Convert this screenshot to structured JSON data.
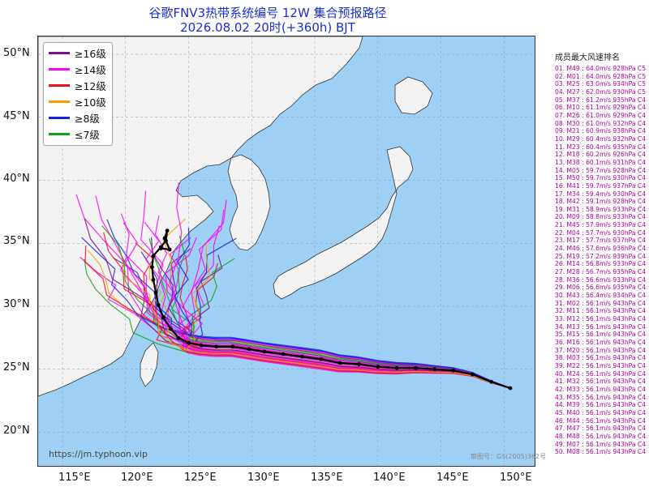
{
  "header": {
    "title_line1": "谷歌FNV3热带系统编号 12W 集合预报路径",
    "title_line2": "2026.08.02 20时(+360h) BJT"
  },
  "colors": {
    "ocean": "#9fd0f5",
    "land": "#f3f3f3",
    "coast": "#333333",
    "track_black": "#000000",
    "level_16": "#7a0f8f",
    "level_14": "#ff00ff",
    "level_12": "#ee1111",
    "level_10": "#f5a000",
    "level_8": "#1a22e0",
    "level_7": "#18a018",
    "ranking_text": "#b0009b"
  },
  "axes": {
    "lat_labels": [
      "50°N",
      "45°N",
      "40°N",
      "35°N",
      "30°N",
      "25°N",
      "20°N"
    ],
    "lon_labels": [
      "115°E",
      "120°E",
      "125°E",
      "130°E",
      "135°E",
      "140°E",
      "145°E",
      "150°E"
    ]
  },
  "legend": {
    "items": [
      {
        "label": "≥16级",
        "color": "#7a0f8f"
      },
      {
        "label": "≥14级",
        "color": "#ff00ff"
      },
      {
        "label": "≥12级",
        "color": "#ee1111"
      },
      {
        "label": "≥10级",
        "color": "#f5a000"
      },
      {
        "label": "≥8级",
        "color": "#1a22e0"
      },
      {
        "label": "≤7级",
        "color": "#18a018"
      }
    ]
  },
  "main_track": {
    "points_lonlat": [
      [
        150.5,
        23.5
      ],
      [
        149.0,
        24.0
      ],
      [
        147.5,
        24.6
      ],
      [
        146.0,
        24.9
      ],
      [
        144.5,
        25.0
      ],
      [
        143.0,
        25.1
      ],
      [
        141.5,
        25.1
      ],
      [
        140.0,
        25.2
      ],
      [
        138.5,
        25.4
      ],
      [
        137.0,
        25.5
      ],
      [
        135.5,
        25.8
      ],
      [
        134.0,
        26.0
      ],
      [
        132.5,
        26.2
      ],
      [
        131.0,
        26.4
      ],
      [
        129.8,
        26.6
      ],
      [
        128.5,
        26.8
      ],
      [
        127.2,
        26.8
      ],
      [
        126.0,
        26.9
      ],
      [
        125.0,
        27.1
      ],
      [
        124.2,
        27.5
      ],
      [
        123.6,
        28.2
      ],
      [
        123.0,
        29.1
      ],
      [
        122.6,
        30.1
      ],
      [
        122.4,
        31.1
      ],
      [
        122.2,
        32.1
      ],
      [
        122.1,
        33.1
      ],
      [
        122.2,
        34.0
      ],
      [
        122.8,
        34.7
      ],
      [
        123.2,
        35.2
      ],
      [
        123.3,
        36.0
      ],
      [
        123.1,
        35.4
      ],
      [
        123.5,
        34.5
      ],
      [
        122.8,
        34.6
      ]
    ]
  },
  "map_text": {
    "watermark": "https://jm.typhoon.vip",
    "approval": "审图号：GS(2005)362号"
  },
  "ranking": {
    "title": "成员最大风速排名",
    "items": [
      "01. M49 : 64.0m/s 928hPa C5",
      "02. M01 : 64.0m/s 928hPa C5",
      "03. M25 : 63.0m/s 934hPa C5",
      "04. M27 : 62.0m/s 930hPa C5",
      "05. M37 : 61.2m/s 935hPa C4",
      "06. M10 : 61.1m/s 929hPa C4",
      "07. M26 : 61.0m/s 929hPa C4",
      "08. M30 : 61.0m/s 932hPa C4",
      "09. M21 : 60.9m/s 938hPa C4",
      "10. M29 : 60.4m/s 932hPa C4",
      "11. M23 : 60.4m/s 935hPa C4",
      "12. M18 : 60.2m/s 926hPa C4",
      "13. M38 : 60.1m/s 931hPa C4",
      "14. M05 : 59.7m/s 928hPa C4",
      "15. M50 : 59.7m/s 930hPa C4",
      "16. M41 : 59.7m/s 937hPa C4",
      "17. M34 : 59.4m/s 930hPa C4",
      "18. M42 : 59.1m/s 928hPa C4",
      "19. M31 : 58.9m/s 933hPa C4",
      "20. M09 : 58.8m/s 933hPa C4",
      "21. M45 : 57.9m/s 933hPa C4",
      "22. M04 : 57.7m/s 930hPa C4",
      "23. M17 : 57.7m/s 937hPa C4",
      "24. M46 : 57.6m/s 936hPa C4",
      "25. M19 : 57.2m/s 939hPa C4",
      "26. M14 : 56.8m/s 933hPa C4",
      "27. M28 : 56.7m/s 935hPa C4",
      "28. M36 : 56.6m/s 933hPa C4",
      "29. M06 : 56.6m/s 935hPa C4",
      "30. M43 : 56.4m/s 934hPa C4",
      "31. M02 : 56.1m/s 943hPa C4",
      "32. M11 : 56.1m/s 943hPa C4",
      "33. M12 : 56.1m/s 943hPa C4",
      "34. M13 : 56.1m/s 943hPa C4",
      "35. M15 : 56.1m/s 943hPa C4",
      "36. M16 : 56.1m/s 943hPa C4",
      "37. M20 : 56.1m/s 943hPa C4",
      "38. M03 : 56.1m/s 943hPa C4",
      "39. M22 : 56.1m/s 943hPa C4",
      "40. M24 : 56.1m/s 943hPa C4",
      "41. M32 : 56.1m/s 943hPa C4",
      "42. M33 : 56.1m/s 943hPa C4",
      "43. M35 : 56.1m/s 943hPa C4",
      "44. M39 : 56.1m/s 943hPa C4",
      "45. M40 : 56.1m/s 943hPa C4",
      "46. M44 : 56.1m/s 943hPa C4",
      "47. M47 : 56.1m/s 943hPa C4",
      "48. M48 : 56.1m/s 943hPa C4",
      "49. M07 : 56.1m/s 943hPa C4",
      "50. M08 : 56.1m/s 943hPa C4"
    ]
  }
}
